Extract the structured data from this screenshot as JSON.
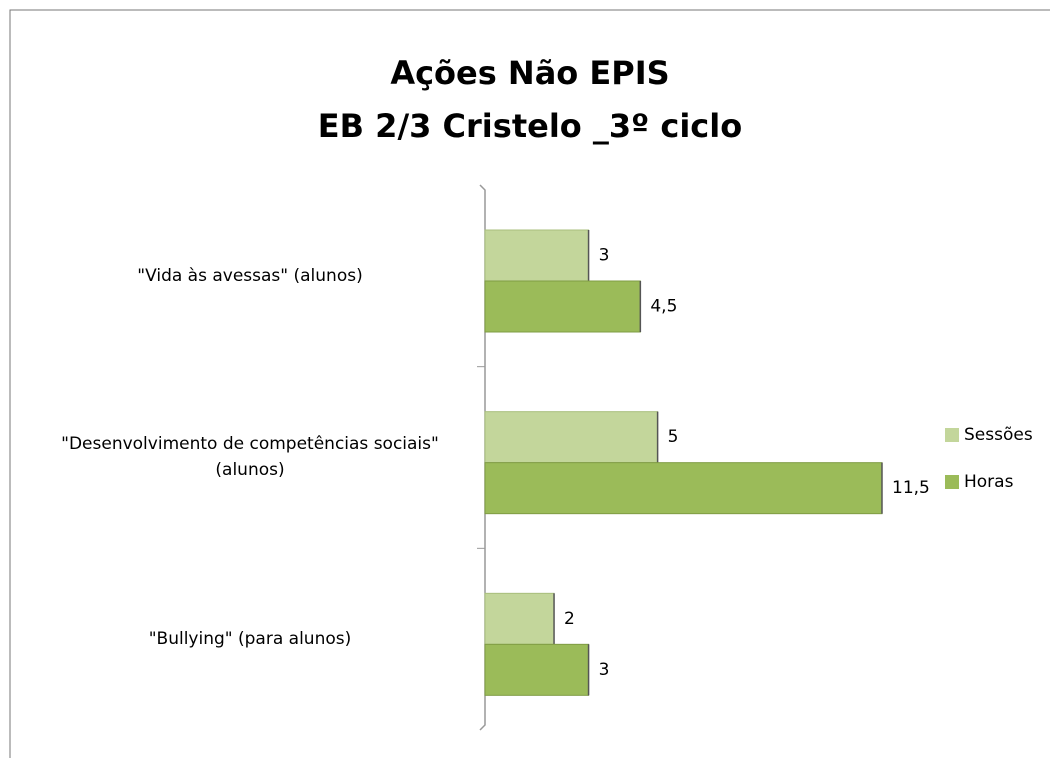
{
  "chart_data": {
    "type": "bar",
    "orientation": "horizontal",
    "title": [
      "Ações Não EPIS",
      "EB 2/3 Cristelo _3º ciclo"
    ],
    "categories": [
      "\"Vida às avessas\" (alunos)",
      "\"Desenvolvimento de competências sociais\" (alunos)",
      "\"Bullying\" (para alunos)"
    ],
    "series": [
      {
        "name": "Sessões",
        "color": "#c3d69b",
        "values": [
          3,
          5,
          2
        ]
      },
      {
        "name": "Horas",
        "color": "#9bbb59",
        "values": [
          4.5,
          11.5,
          3
        ],
        "value_labels": [
          "4,5",
          "11,5",
          "3"
        ]
      }
    ],
    "legend": "right"
  }
}
